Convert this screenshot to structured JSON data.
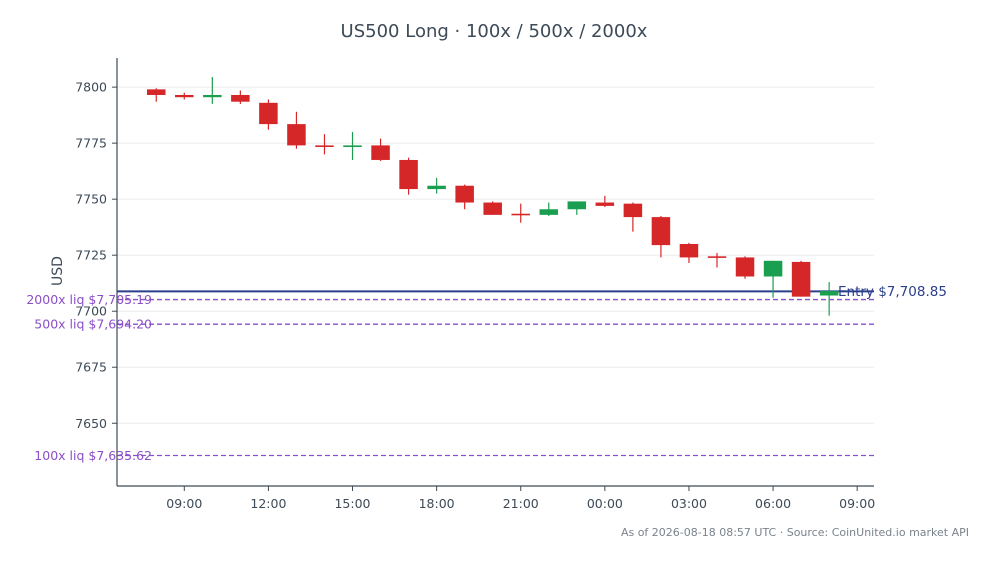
{
  "chart_data": {
    "type": "candlestick",
    "title": "US500 Long · 100x / 500x / 2000x",
    "ylabel": "USD",
    "ylim": [
      7622,
      7813
    ],
    "y_ticks": [
      7650,
      7675,
      7700,
      7725,
      7750,
      7775,
      7800
    ],
    "x_ticks": [
      {
        "hour": 9,
        "label": "09:00"
      },
      {
        "hour": 12,
        "label": "12:00"
      },
      {
        "hour": 15,
        "label": "15:00"
      },
      {
        "hour": 18,
        "label": "18:00"
      },
      {
        "hour": 21,
        "label": "21:00"
      },
      {
        "hour": 24,
        "label": "00:00"
      },
      {
        "hour": 27,
        "label": "03:00"
      },
      {
        "hour": 30,
        "label": "06:00"
      },
      {
        "hour": 33,
        "label": "09:00"
      }
    ],
    "xlim": [
      6.6,
      33.6
    ],
    "candles": [
      {
        "hour": 8,
        "open": 7799.0,
        "high": 7799.5,
        "low": 7793.5,
        "close": 7796.5
      },
      {
        "hour": 9,
        "open": 7796.5,
        "high": 7797.5,
        "low": 7794.5,
        "close": 7795.5
      },
      {
        "hour": 10,
        "open": 7795.5,
        "high": 7804.5,
        "low": 7792.5,
        "close": 7796.5
      },
      {
        "hour": 11,
        "open": 7796.5,
        "high": 7798.5,
        "low": 7792.5,
        "close": 7793.5
      },
      {
        "hour": 12,
        "open": 7793.0,
        "high": 7794.5,
        "low": 7781.0,
        "close": 7783.5
      },
      {
        "hour": 13,
        "open": 7783.5,
        "high": 7789.0,
        "low": 7772.5,
        "close": 7774.0
      },
      {
        "hour": 14,
        "open": 7774.0,
        "high": 7779.0,
        "low": 7770.0,
        "close": 7773.5
      },
      {
        "hour": 15,
        "open": 7773.5,
        "high": 7780.0,
        "low": 7767.5,
        "close": 7774.0
      },
      {
        "hour": 16,
        "open": 7774.0,
        "high": 7777.0,
        "low": 7767.0,
        "close": 7767.5
      },
      {
        "hour": 17,
        "open": 7767.5,
        "high": 7768.5,
        "low": 7752.0,
        "close": 7754.5
      },
      {
        "hour": 18,
        "open": 7754.5,
        "high": 7759.5,
        "low": 7752.5,
        "close": 7756.0
      },
      {
        "hour": 19,
        "open": 7756.0,
        "high": 7756.5,
        "low": 7745.5,
        "close": 7748.5
      },
      {
        "hour": 20,
        "open": 7748.5,
        "high": 7749.0,
        "low": 7743.0,
        "close": 7743.0
      },
      {
        "hour": 21,
        "open": 7743.5,
        "high": 7748.0,
        "low": 7739.5,
        "close": 7743.0
      },
      {
        "hour": 22,
        "open": 7743.0,
        "high": 7748.5,
        "low": 7742.5,
        "close": 7745.5
      },
      {
        "hour": 23,
        "open": 7745.5,
        "high": 7749.0,
        "low": 7743.0,
        "close": 7749.0
      },
      {
        "hour": 24,
        "open": 7748.5,
        "high": 7751.5,
        "low": 7746.5,
        "close": 7747.0
      },
      {
        "hour": 25,
        "open": 7748.0,
        "high": 7748.5,
        "low": 7735.5,
        "close": 7742.0
      },
      {
        "hour": 26,
        "open": 7742.0,
        "high": 7742.5,
        "low": 7724.0,
        "close": 7729.5
      },
      {
        "hour": 27,
        "open": 7730.0,
        "high": 7730.5,
        "low": 7721.5,
        "close": 7724.0
      },
      {
        "hour": 28,
        "open": 7724.5,
        "high": 7726.0,
        "low": 7719.5,
        "close": 7724.0
      },
      {
        "hour": 29,
        "open": 7724.0,
        "high": 7724.5,
        "low": 7714.5,
        "close": 7715.5
      },
      {
        "hour": 30,
        "open": 7715.5,
        "high": 7722.5,
        "low": 7706.0,
        "close": 7722.5
      },
      {
        "hour": 31,
        "open": 7722.0,
        "high": 7722.5,
        "low": 7706.5,
        "close": 7706.5
      },
      {
        "hour": 32,
        "open": 7707.0,
        "high": 7713.0,
        "low": 7698.0,
        "close": 7709.0
      }
    ],
    "levels": [
      {
        "kind": "entry",
        "value": 7708.85,
        "label": "Entry $7,708.85"
      },
      {
        "kind": "liq",
        "value": 7705.19,
        "label": "2000x liq $7,705.19"
      },
      {
        "kind": "liq",
        "value": 7694.2,
        "label": "500x liq $7,694.20"
      },
      {
        "kind": "liq",
        "value": 7635.62,
        "label": "100x liq $7,635.62"
      }
    ],
    "colors": {
      "up": "#1a9e4f",
      "down": "#d62728",
      "entry": "#2b3f8c",
      "liq": "#8b4fc9",
      "axis": "#3d4a57",
      "grid": "#ececec"
    },
    "grid": true
  },
  "footer": "As of 2026-08-18 08:57 UTC · Source: CoinUnited.io market API"
}
